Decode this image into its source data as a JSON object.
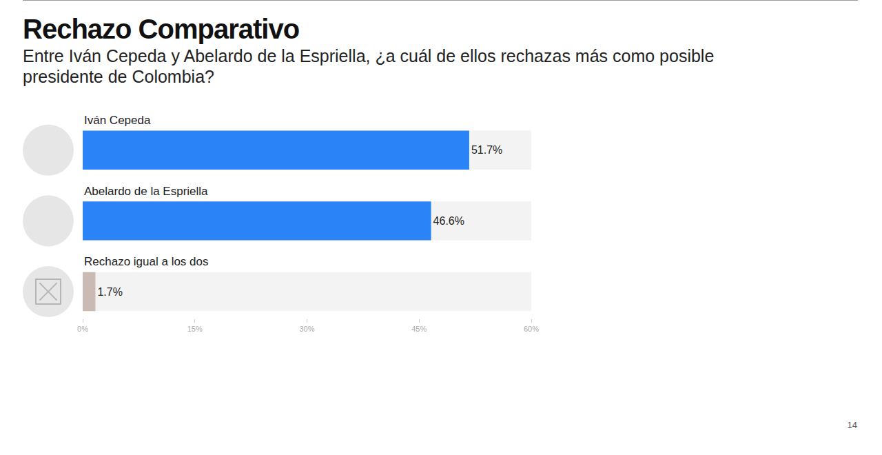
{
  "chart_data": {
    "type": "bar",
    "orientation": "horizontal",
    "title": "Rechazo Comparativo",
    "subtitle": "Entre Iván Cepeda y Abelardo de la Espriella, ¿a cuál de ellos rechazas más como posible presidente de Colombia?",
    "categories": [
      "Iván Cepeda",
      "Abelardo de la Espriella",
      "Rechazo igual a los dos"
    ],
    "values": [
      51.7,
      46.6,
      1.7
    ],
    "value_labels": [
      "51.7%",
      "46.6%",
      "1.7%"
    ],
    "colors": [
      "#2b84f7",
      "#2b84f7",
      "#c9bbb3"
    ],
    "xlim": [
      0,
      60
    ],
    "xticks": [
      {
        "value": 0,
        "label": "0%"
      },
      {
        "value": 15,
        "label": "15%"
      },
      {
        "value": 30,
        "label": "30%"
      },
      {
        "value": 45,
        "label": "45%"
      },
      {
        "value": 60,
        "label": "60%"
      }
    ],
    "data_labels": true,
    "tick_labels": "x",
    "grid": false,
    "annotations": [
      "14"
    ]
  }
}
